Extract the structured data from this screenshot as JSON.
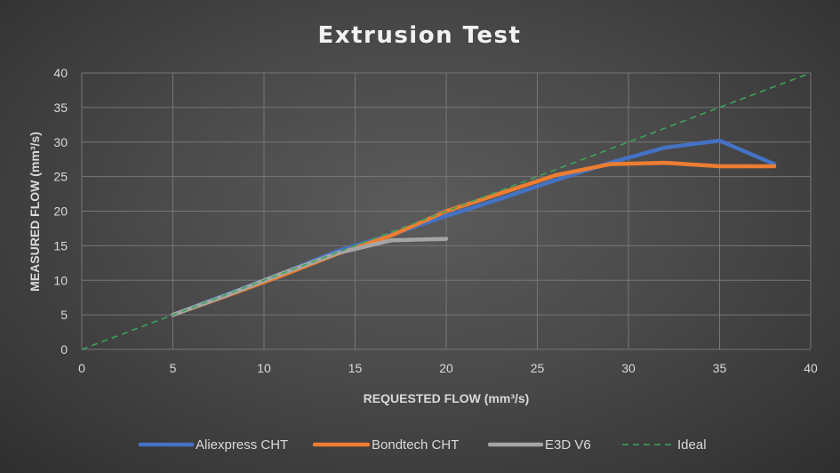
{
  "chart_data": {
    "type": "line",
    "title": "Extrusion Test",
    "xlabel": "REQUESTED FLOW (mm³/s)",
    "ylabel": "MEASURED FLOW (mm³/s)",
    "xlim": [
      0,
      40
    ],
    "ylim": [
      0,
      40
    ],
    "xticks": [
      0,
      5,
      10,
      15,
      20,
      25,
      30,
      35,
      40
    ],
    "yticks": [
      0,
      5,
      10,
      15,
      20,
      25,
      30,
      35,
      40
    ],
    "grid": true,
    "legend_position": "bottom",
    "series": [
      {
        "name": "Aliexpress CHT",
        "color": "#4472c4",
        "style": "solid",
        "points": [
          [
            5,
            5
          ],
          [
            8,
            8
          ],
          [
            11,
            11
          ],
          [
            14,
            14.2
          ],
          [
            17,
            16.6
          ],
          [
            20,
            19.3
          ],
          [
            23,
            21.8
          ],
          [
            26,
            24.5
          ],
          [
            29,
            27
          ],
          [
            32,
            29.2
          ],
          [
            35,
            30.2
          ],
          [
            38,
            26.8
          ]
        ]
      },
      {
        "name": "Bondtech CHT",
        "color": "#ed7d31",
        "style": "solid",
        "points": [
          [
            5,
            5
          ],
          [
            8,
            7.8
          ],
          [
            11,
            10.7
          ],
          [
            14,
            13.8
          ],
          [
            17,
            16.5
          ],
          [
            20,
            20
          ],
          [
            23,
            22.6
          ],
          [
            26,
            25.2
          ],
          [
            29,
            26.8
          ],
          [
            32,
            27
          ],
          [
            35,
            26.5
          ],
          [
            38,
            26.5
          ]
        ]
      },
      {
        "name": "E3D V6",
        "color": "#a5a5a5",
        "style": "solid",
        "points": [
          [
            5,
            5
          ],
          [
            8,
            7.9
          ],
          [
            11,
            11
          ],
          [
            14,
            13.9
          ],
          [
            17,
            15.8
          ],
          [
            20,
            16
          ]
        ]
      },
      {
        "name": "Ideal",
        "color": "#3aa35a",
        "style": "dashed",
        "points": [
          [
            0,
            0
          ],
          [
            40,
            40
          ]
        ]
      }
    ]
  }
}
